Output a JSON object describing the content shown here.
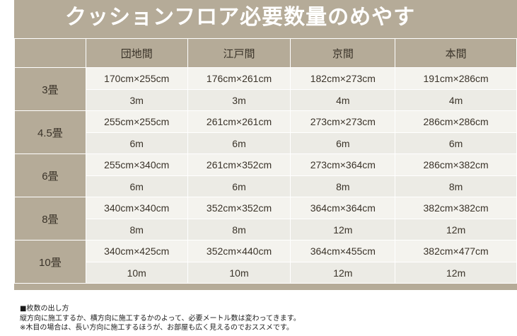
{
  "title": "クッションフロア必要数量のめやす",
  "table": {
    "headers": [
      "団地間",
      "江戸間",
      "京間",
      "本間"
    ],
    "rows": [
      {
        "size": "3畳",
        "dims": [
          "170cm×255cm",
          "176cm×261cm",
          "182cm×273cm",
          "191cm×286cm"
        ],
        "lengths": [
          "3m",
          "3m",
          "4m",
          "4m"
        ]
      },
      {
        "size": "4.5畳",
        "dims": [
          "255cm×255cm",
          "261cm×261cm",
          "273cm×273cm",
          "286cm×286cm"
        ],
        "lengths": [
          "6m",
          "6m",
          "6m",
          "6m"
        ]
      },
      {
        "size": "6畳",
        "dims": [
          "255cm×340cm",
          "261cm×352cm",
          "273cm×364cm",
          "286cm×382cm"
        ],
        "lengths": [
          "6m",
          "6m",
          "8m",
          "8m"
        ]
      },
      {
        "size": "8畳",
        "dims": [
          "340cm×340cm",
          "352cm×352cm",
          "364cm×364cm",
          "382cm×382cm"
        ],
        "lengths": [
          "8m",
          "8m",
          "12m",
          "12m"
        ]
      },
      {
        "size": "10畳",
        "dims": [
          "340cm×425cm",
          "352cm×440cm",
          "364cm×455cm",
          "382cm×477cm"
        ],
        "lengths": [
          "10m",
          "10m",
          "12m",
          "12m"
        ]
      }
    ]
  },
  "notes": {
    "heading": "■枚数の出し方",
    "line1": "縦方向に施工するか、横方向に施工するかのよって、必要メートル数は変わってきます。",
    "line2": "※木目の場合は、長い方向に施工するほうが、お部屋も広く見えるのでおススメです。"
  }
}
